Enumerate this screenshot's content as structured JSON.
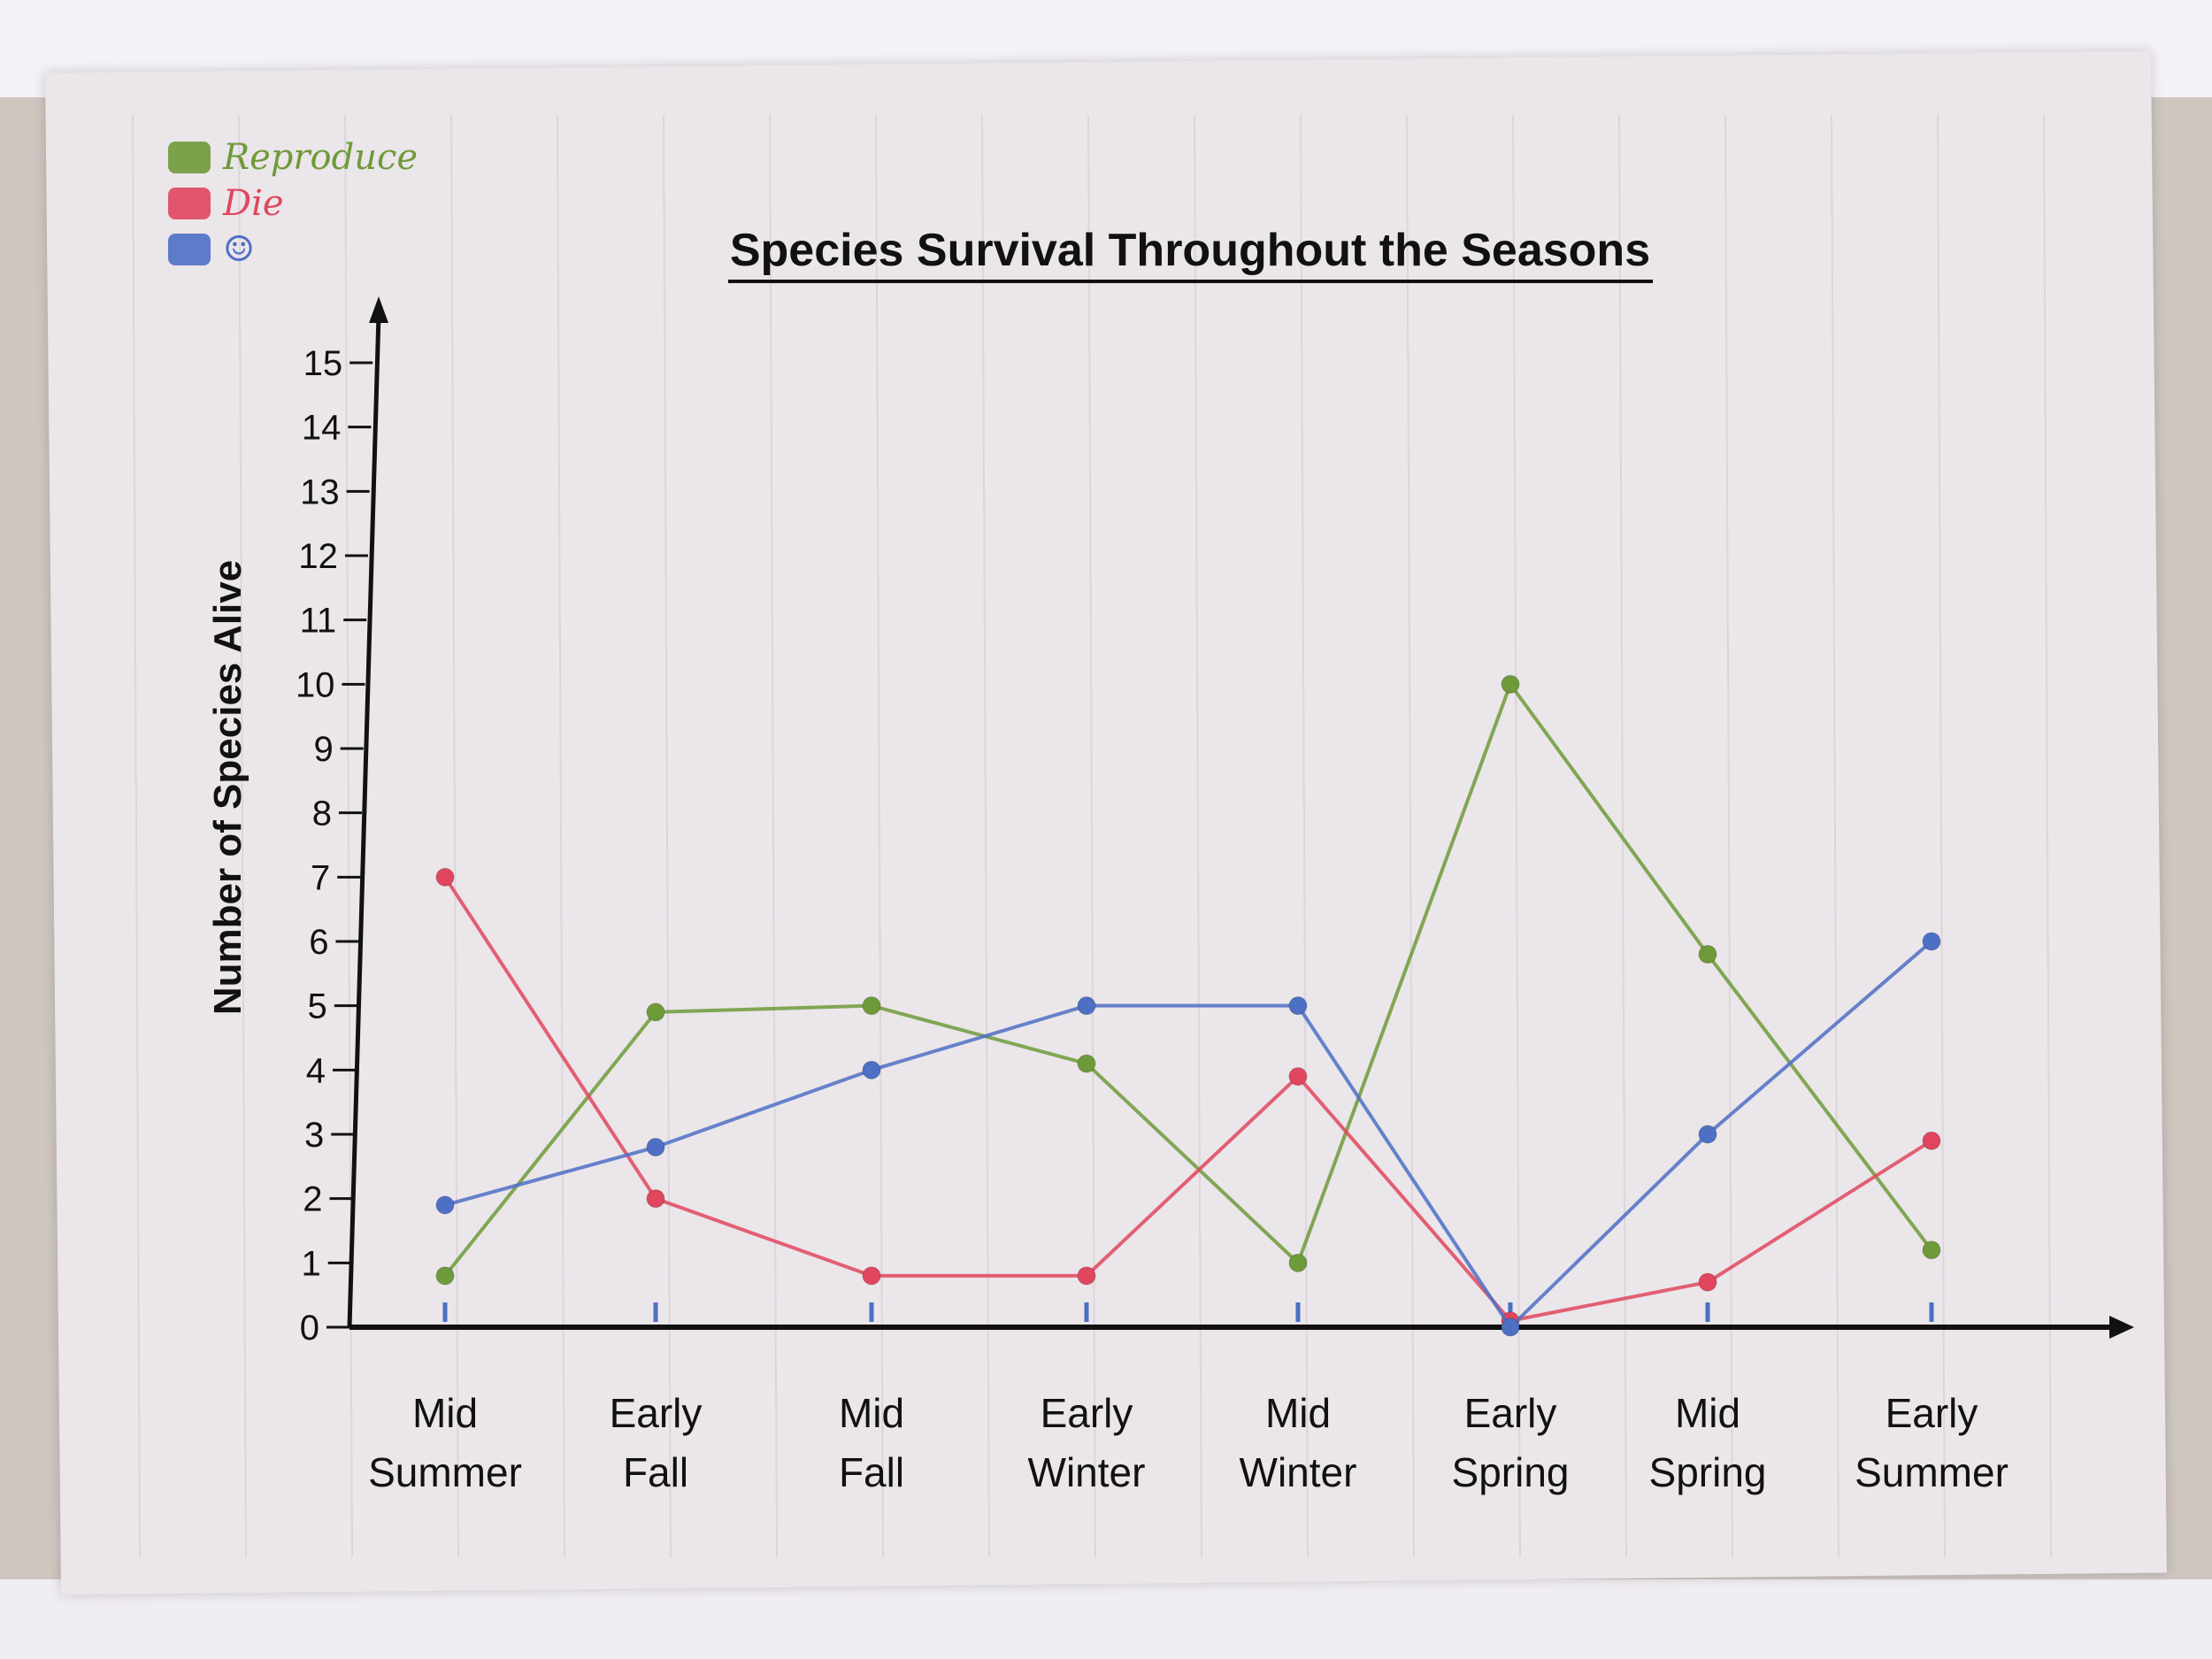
{
  "legend": [
    {
      "label": "Reproduce",
      "color": "#6f9a3a"
    },
    {
      "label": "Die",
      "color": "#e0465e"
    },
    {
      "label": "☺",
      "color": "#4d6fc4"
    }
  ],
  "chart_data": {
    "type": "line",
    "title": "Species Survival Throughout the Seasons",
    "xlabel": "",
    "ylabel": "Number of Species Alive",
    "ylim": [
      0,
      15
    ],
    "yticks": [
      "0",
      "1",
      "2",
      "3",
      "4",
      "5",
      "6",
      "7",
      "8",
      "9",
      "10",
      "11",
      "12",
      "13",
      "14",
      "15"
    ],
    "categories": [
      [
        "Mid",
        "Summer"
      ],
      [
        "Early",
        "Fall"
      ],
      [
        "Mid",
        "Fall"
      ],
      [
        "Early",
        "Winter"
      ],
      [
        "Mid",
        "Winter"
      ],
      [
        "Early",
        "Spring"
      ],
      [
        "Mid",
        "Spring"
      ],
      [
        "Early",
        "Summer"
      ]
    ],
    "series": [
      {
        "name": "Reproduce",
        "color": "#6f9a3a",
        "values": [
          0.8,
          4.9,
          5.0,
          4.1,
          1.0,
          10.0,
          5.8,
          1.2
        ]
      },
      {
        "name": "Die",
        "color": "#e0465e",
        "values": [
          7.0,
          2.0,
          0.8,
          0.8,
          3.9,
          0.1,
          0.7,
          2.9
        ]
      },
      {
        "name": "☺",
        "color": "#4d6fc4",
        "values": [
          1.9,
          2.8,
          4.0,
          5.0,
          5.0,
          0.0,
          3.0,
          6.0
        ]
      }
    ],
    "grid": false,
    "legend_position": "top-left"
  }
}
